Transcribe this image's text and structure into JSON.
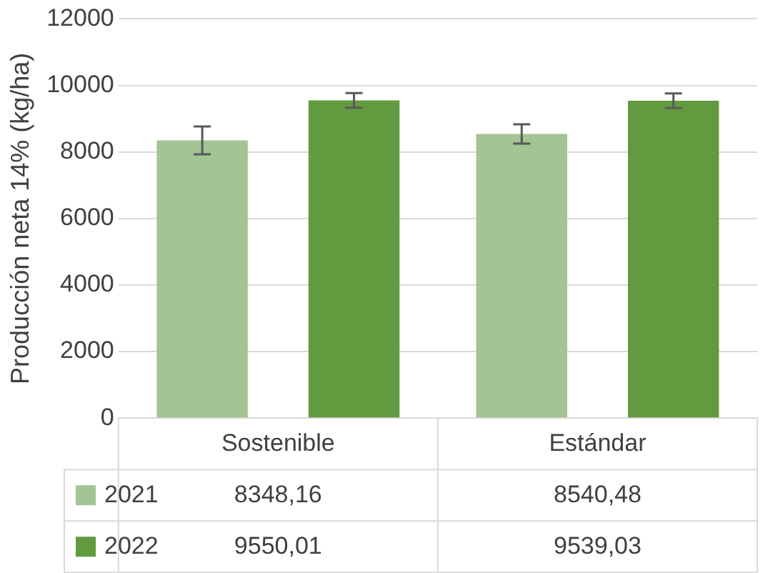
{
  "chart_data": {
    "type": "bar",
    "ylabel": "Producción neta 14% (kg/ha)",
    "categories": [
      "Sostenible",
      "Estándar"
    ],
    "series": [
      {
        "name": "2021",
        "color": "#a3c493",
        "values": [
          8348.16,
          8540.48
        ],
        "errors": [
          420,
          290
        ],
        "value_labels": [
          "8348,16",
          "8540,48"
        ]
      },
      {
        "name": "2022",
        "color": "#629a3f",
        "values": [
          9550.01,
          9539.03
        ],
        "errors": [
          220,
          220
        ],
        "value_labels": [
          "9550,01",
          "9539,03"
        ]
      }
    ],
    "ylim": [
      0,
      12000
    ],
    "yticks": [
      0,
      2000,
      4000,
      6000,
      8000,
      10000,
      12000
    ],
    "grid": "y",
    "legend": "bottom"
  }
}
